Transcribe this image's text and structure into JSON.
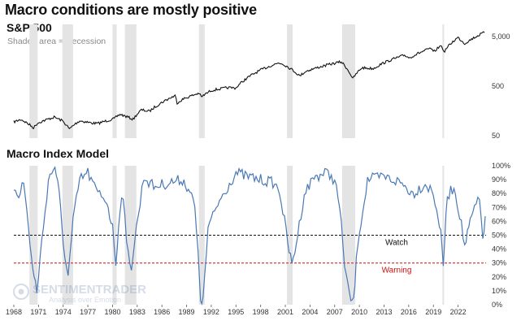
{
  "title": "Macro conditions are mostly positive",
  "top_panel": {
    "title": "S&P 500",
    "note": "Shaded area = Recession"
  },
  "bottom_panel": {
    "title": "Macro Index Model"
  },
  "watermark": {
    "line1": "SENTIMENTRADER",
    "line2": "Analysis over Emotion"
  },
  "colors": {
    "recession": "#e4e4e4",
    "spx_line": "#111111",
    "macro_line": "#4a78b5",
    "watch": "#111111",
    "warning": "#cc1111"
  },
  "chart_data": [
    {
      "type": "line",
      "name": "S&P 500",
      "scale": "log",
      "x_range": [
        1968,
        2025.4
      ],
      "ylim": [
        50,
        8000
      ],
      "y_ticks": [
        50,
        500,
        5000
      ],
      "y_tick_labels": [
        "50",
        "500",
        "5,000"
      ],
      "recessions": [
        [
          1969.9,
          1970.9
        ],
        [
          1973.9,
          1975.2
        ],
        [
          1980.0,
          1980.5
        ],
        [
          1981.5,
          1982.9
        ],
        [
          1990.5,
          1991.2
        ],
        [
          2001.2,
          2001.9
        ],
        [
          2007.9,
          2009.5
        ],
        [
          2020.1,
          2020.3
        ]
      ],
      "series": [
        {
          "name": "S&P 500",
          "x": [
            1968,
            1968.9,
            1970.4,
            1970.9,
            1972.9,
            1973.9,
            1974.75,
            1976.0,
            1977.5,
            1978.2,
            1980.2,
            1980.9,
            1982.5,
            1983.5,
            1984.5,
            1987.6,
            1987.85,
            1988.5,
            1990.5,
            1990.8,
            1992.0,
            1994.0,
            1995.0,
            1998.5,
            2000.2,
            2000.7,
            2002.75,
            2003.5,
            2007.8,
            2009.2,
            2010.3,
            2011.7,
            2013,
            2015.5,
            2016.1,
            2018.7,
            2018.98,
            2020.0,
            2020.25,
            2021.98,
            2022.8,
            2024.0,
            2025.2
          ],
          "values": [
            95,
            106,
            72,
            90,
            118,
            100,
            68,
            100,
            90,
            88,
            110,
            135,
            107,
            165,
            155,
            320,
            230,
            270,
            360,
            300,
            410,
            465,
            460,
            1150,
            1470,
            1400,
            800,
            1000,
            1550,
            700,
            1170,
            1130,
            1480,
            2100,
            1860,
            2900,
            2400,
            3350,
            2400,
            4770,
            3600,
            4800,
            6050
          ]
        }
      ]
    },
    {
      "type": "line",
      "name": "Macro Index Model",
      "x_range": [
        1968,
        2025.4
      ],
      "ylim": [
        0,
        100
      ],
      "y_ticks": [
        0,
        10,
        20,
        30,
        40,
        50,
        60,
        70,
        80,
        90,
        100
      ],
      "y_tick_labels": [
        "0%",
        "10%",
        "20%",
        "30%",
        "40%",
        "50%",
        "60%",
        "70%",
        "80%",
        "90%",
        "100%"
      ],
      "x_ticks": [
        1968,
        1971,
        1974,
        1977,
        1980,
        1983,
        1986,
        1989,
        1992,
        1995,
        1998,
        2001,
        2004,
        2007,
        2010,
        2013,
        2016,
        2019,
        2022
      ],
      "x_tick_labels": [
        "1968",
        "1971",
        "1974",
        "1977",
        "1980",
        "1983",
        "1986",
        "1989",
        "1992",
        "1995",
        "1998",
        "2001",
        "2004",
        "2007",
        "2010",
        "2013",
        "2016",
        "2019",
        "2022"
      ],
      "reference_lines": [
        {
          "label": "Watch",
          "value": 50
        },
        {
          "label": "Warning",
          "value": 30
        }
      ],
      "series": [
        {
          "name": "Macro Index Model",
          "x": [
            1968,
            1968.6,
            1969.2,
            1969.8,
            1970.3,
            1970.8,
            1971.4,
            1972.2,
            1973.0,
            1973.5,
            1974.0,
            1974.6,
            1975.2,
            1976.0,
            1977.0,
            1978.0,
            1979.3,
            1980.0,
            1980.4,
            1980.9,
            1981.3,
            1981.7,
            1982.3,
            1982.9,
            1983.8,
            1985.0,
            1987.0,
            1988.5,
            1989.4,
            1990.0,
            1990.4,
            1990.7,
            1991.0,
            1991.6,
            1993.0,
            1995.0,
            1996.5,
            1998.0,
            1999.5,
            2000.3,
            2000.9,
            2001.3,
            2001.8,
            2002.5,
            2003.3,
            2004.5,
            2006.0,
            2007.0,
            2007.6,
            2008.2,
            2008.8,
            2009.3,
            2009.8,
            2011.0,
            2013.0,
            2015.0,
            2016.5,
            2018.0,
            2018.8,
            2019.4,
            2019.9,
            2020.2,
            2020.7,
            2021.5,
            2022.2,
            2022.8,
            2023.3,
            2024.0,
            2024.6,
            2025.0,
            2025.3
          ],
          "values": [
            85,
            80,
            88,
            55,
            25,
            10,
            45,
            90,
            100,
            80,
            45,
            20,
            60,
            90,
            95,
            82,
            75,
            55,
            30,
            70,
            80,
            42,
            28,
            55,
            92,
            85,
            88,
            90,
            82,
            70,
            35,
            5,
            2,
            55,
            75,
            95,
            92,
            90,
            88,
            82,
            60,
            45,
            28,
            50,
            80,
            92,
            95,
            90,
            70,
            30,
            5,
            2,
            45,
            90,
            92,
            88,
            80,
            87,
            82,
            70,
            50,
            30,
            78,
            85,
            65,
            42,
            55,
            70,
            75,
            50,
            60
          ]
        }
      ]
    }
  ]
}
